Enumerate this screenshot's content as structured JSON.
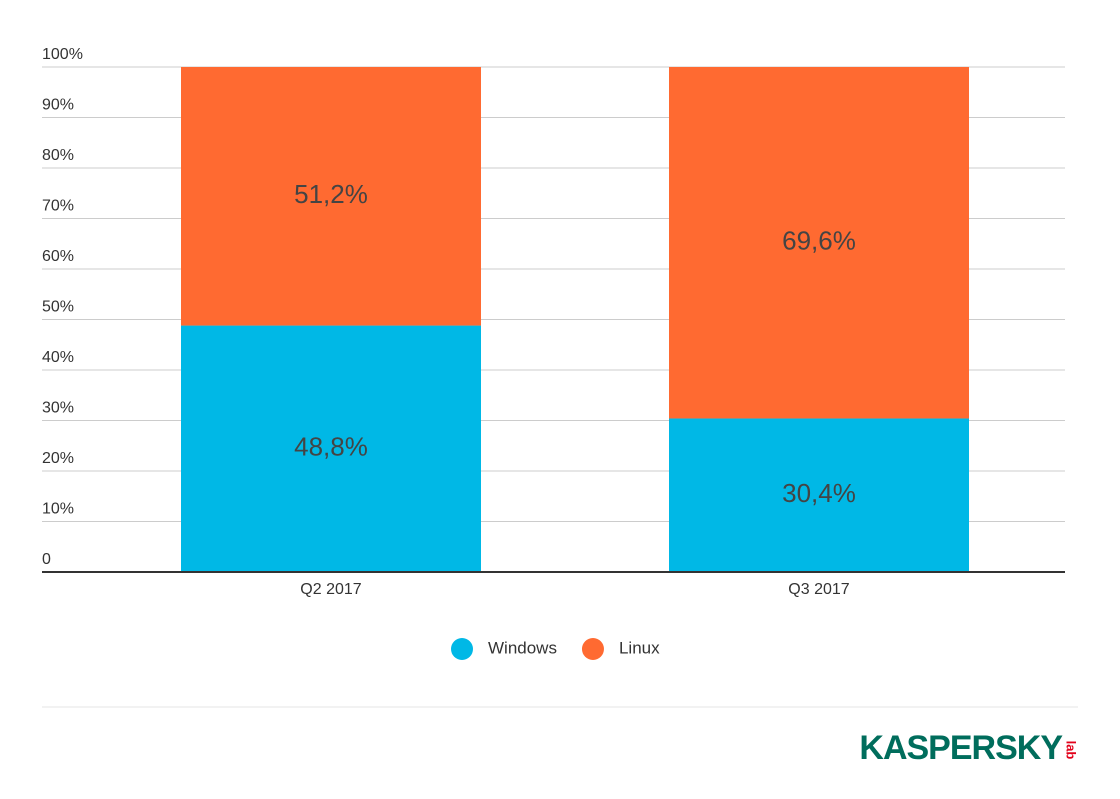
{
  "chart_data": {
    "type": "stacked_bar",
    "categories": [
      "Q2 2017",
      "Q3 2017"
    ],
    "series": [
      {
        "name": "Windows",
        "color": "#00b8e6",
        "values": [
          48.8,
          30.4
        ],
        "value_labels": [
          "48,8%",
          "30,4%"
        ]
      },
      {
        "name": "Linux",
        "color": "#ff6a31",
        "values": [
          51.2,
          69.6
        ],
        "value_labels": [
          "51,2%",
          "69,6%"
        ]
      }
    ],
    "ylim": [
      0,
      100
    ],
    "yticks": [
      0,
      {
        "value": 10,
        "label": "10%"
      },
      {
        "value": 20,
        "label": "20%"
      },
      {
        "value": 30,
        "label": "30%"
      },
      {
        "value": 40,
        "label": "40%"
      },
      {
        "value": 50,
        "label": "50%"
      },
      {
        "value": 60,
        "label": "60%"
      },
      {
        "value": 70,
        "label": "70%"
      },
      {
        "value": 80,
        "label": "80%"
      },
      {
        "value": 90,
        "label": "90%"
      },
      {
        "value": 100,
        "label": "100%"
      }
    ],
    "grid": true,
    "legend": "bottom",
    "logo": {
      "brand": "KASPERSKY",
      "suffix": "lab"
    }
  }
}
